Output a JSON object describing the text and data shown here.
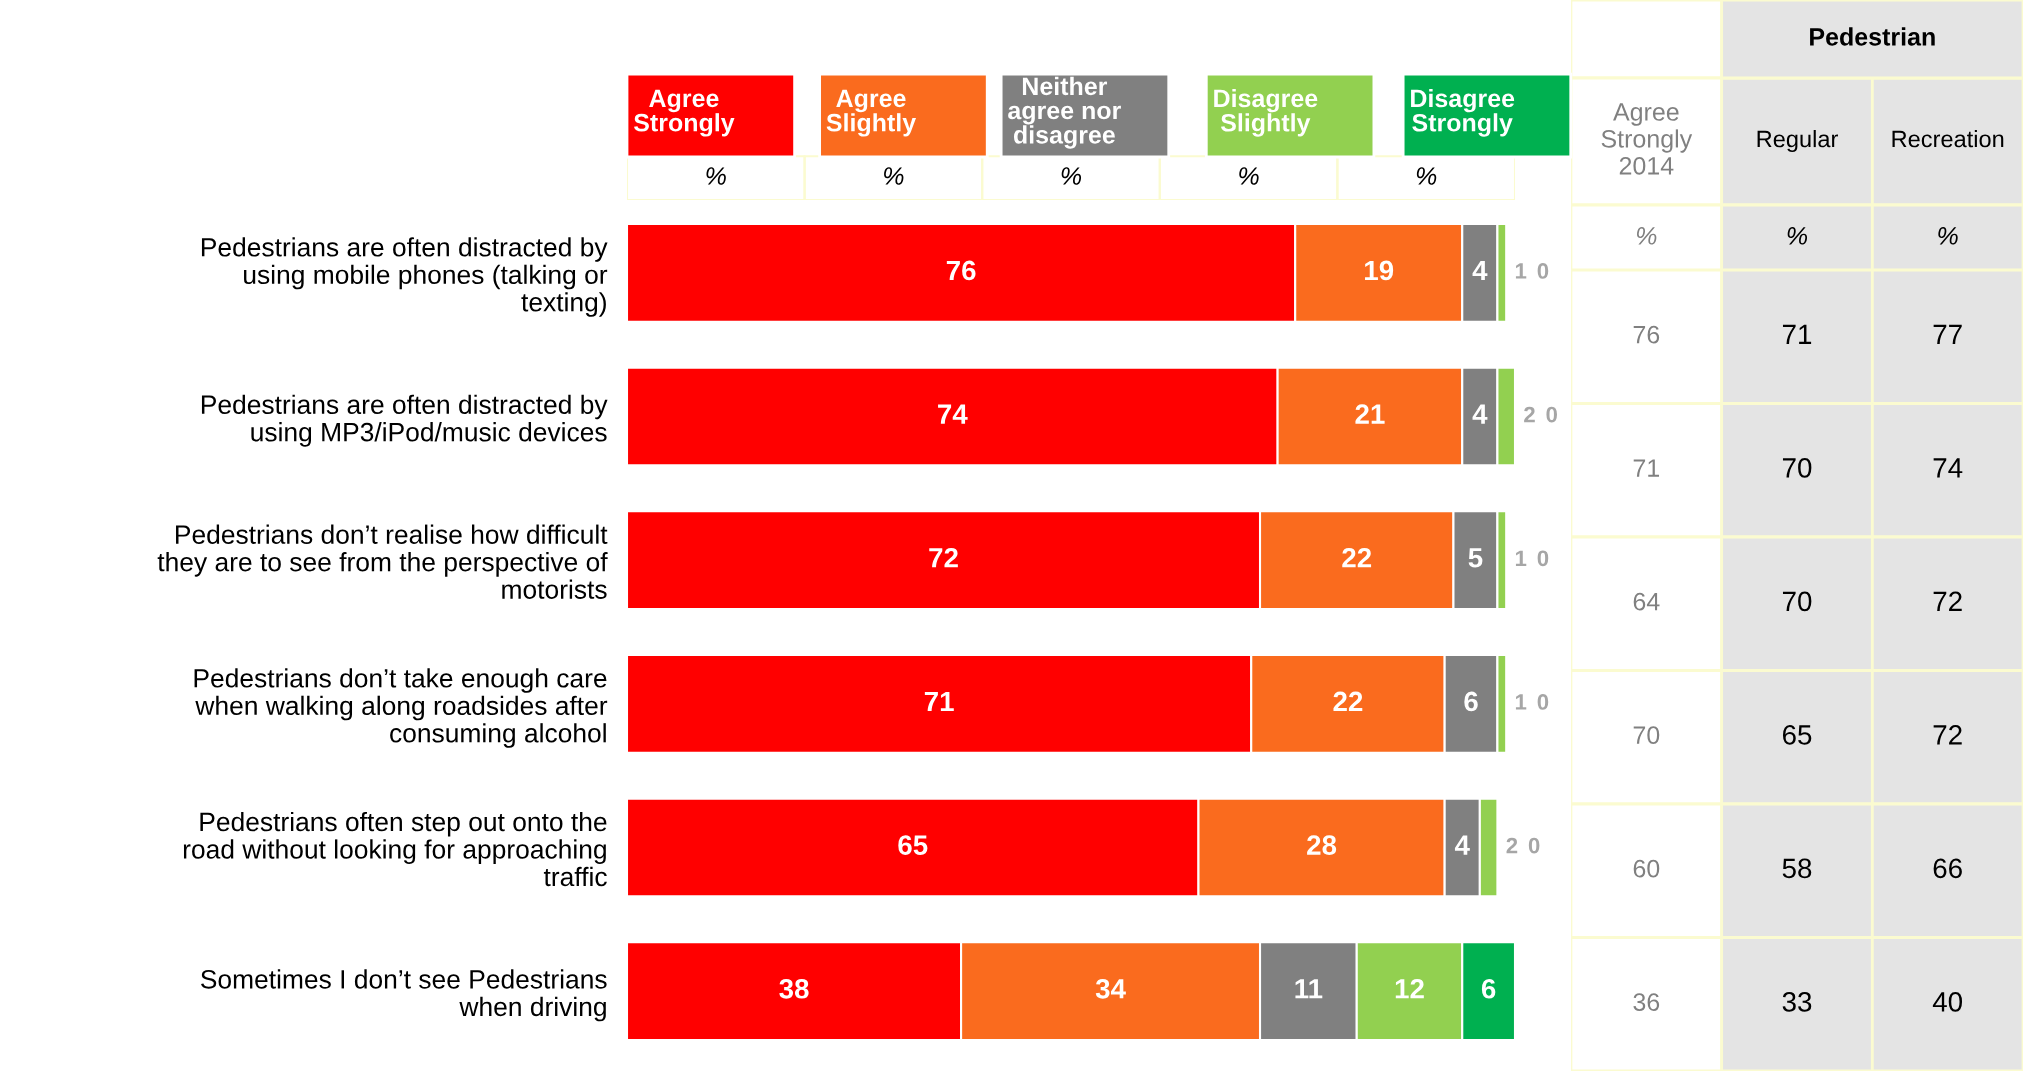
{
  "chart_data": [
    {
      "type": "bar",
      "orientation": "horizontal",
      "stacked": true,
      "data_labels": true,
      "legend": "top",
      "grid": false,
      "categories": [
        "Pedestrians are often distracted by\nusing mobile phones (talking or\ntexting)",
        "Pedestrians are often distracted by\nusing MP3/iPod/music devices",
        "Pedestrians don’t realise how difficult\nthey are to see from the perspective of\nmotorists",
        "Pedestrians don’t take enough care\nwhen walking along roadsides after\nconsuming alcohol",
        "Pedestrians often step out onto the\nroad without looking for approaching\ntraffic",
        "Sometimes I don’t see Pedestrians\nwhen driving"
      ],
      "series": [
        {
          "name": "Agree\nStrongly",
          "color": "#ff0000",
          "values": [
            76,
            74,
            72,
            71,
            65,
            38
          ]
        },
        {
          "name": "Agree\nSlightly",
          "color": "#fa6b1e",
          "values": [
            19,
            21,
            22,
            22,
            28,
            34
          ]
        },
        {
          "name": "Neither\nagree nor\ndisagree",
          "color": "#808080",
          "values": [
            4,
            4,
            5,
            6,
            4,
            11
          ]
        },
        {
          "name": "Disagree\nSlightly",
          "color": "#92d050",
          "values": [
            1,
            2,
            1,
            1,
            2,
            12
          ]
        },
        {
          "name": "Disagree\nStrongly",
          "color": "#00b050",
          "values": [
            0,
            0,
            0,
            0,
            0,
            6
          ]
        }
      ],
      "annotations": [
        "%",
        "%",
        "%",
        "%",
        "%"
      ]
    },
    {
      "type": "heatmap",
      "title": "Pedestrian",
      "data_labels": true,
      "categories": [
        "Agree\nStrongly\n2014",
        "Regular",
        "Recreation"
      ],
      "y_categories": [
        null,
        null,
        null,
        null,
        null,
        null
      ],
      "cells": [
        [
          76,
          71,
          77
        ],
        [
          71,
          70,
          74
        ],
        [
          64,
          70,
          72
        ],
        [
          70,
          65,
          72
        ],
        [
          60,
          58,
          66
        ],
        [
          36,
          33,
          40
        ]
      ],
      "annotations": [
        "%",
        "%",
        "%"
      ]
    }
  ]
}
